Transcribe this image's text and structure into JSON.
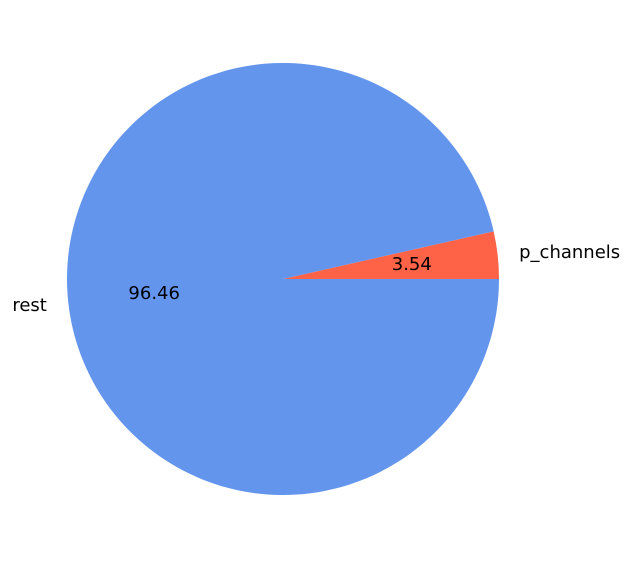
{
  "chart_data": {
    "type": "pie",
    "slices": [
      {
        "label": "p_channels",
        "value": 3.54,
        "display": "3.54",
        "color": "#FF6347"
      },
      {
        "label": "rest",
        "value": 96.46,
        "display": "96.46",
        "color": "#6495ED"
      }
    ],
    "start_angle": 0,
    "direction": "counterclockwise",
    "legend": "none"
  }
}
